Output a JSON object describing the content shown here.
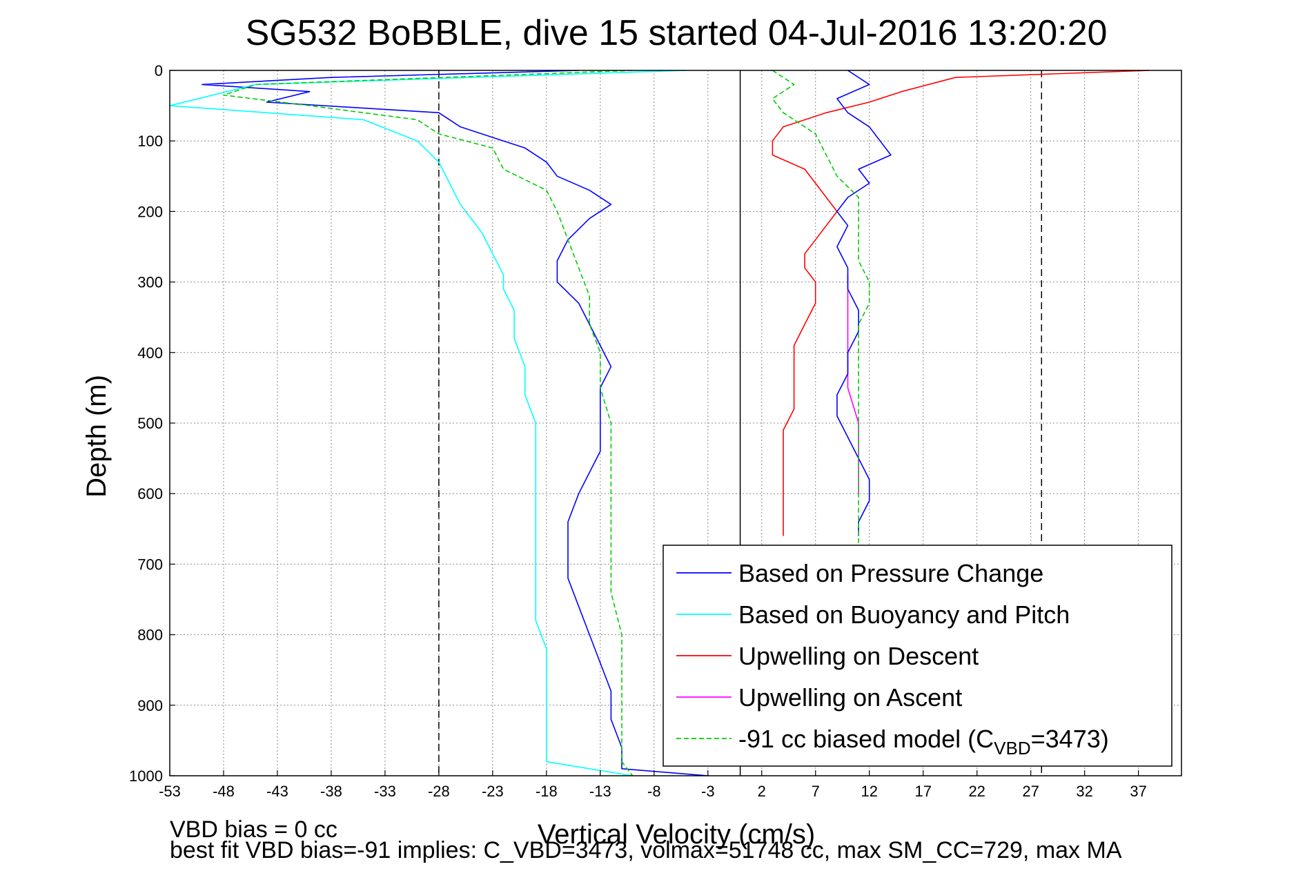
{
  "chart_data": {
    "type": "line",
    "title": "SG532 BoBBLE, dive 15 started 04-Jul-2016 13:20:20",
    "xlabel": "Vertical Velocity (cm/s)",
    "ylabel": "Depth (m)",
    "xlim": [
      -53,
      41
    ],
    "ylim": [
      0,
      1000
    ],
    "y_reversed": true,
    "grid": true,
    "x_ticks": [
      -53,
      -48,
      -43,
      -38,
      -33,
      -28,
      -23,
      -18,
      -13,
      -8,
      -3,
      2,
      7,
      12,
      17,
      22,
      27,
      32,
      37
    ],
    "y_ticks": [
      0,
      100,
      200,
      300,
      400,
      500,
      600,
      700,
      800,
      900,
      1000
    ],
    "vlines": [
      {
        "x": -28,
        "style": "dashed",
        "color": "#000000"
      },
      {
        "x": 0,
        "style": "solid",
        "color": "#000000"
      },
      {
        "x": 28,
        "style": "dashed",
        "color": "#000000"
      }
    ],
    "legend_position": "bottom-right",
    "series": [
      {
        "name": "Based on Pressure Change",
        "color": "#0000ff",
        "style": "solid",
        "points": [
          [
            -15,
            0
          ],
          [
            -38,
            10
          ],
          [
            -50,
            20
          ],
          [
            -40,
            30
          ],
          [
            -44,
            45
          ],
          [
            -28,
            60
          ],
          [
            -26,
            80
          ],
          [
            -23,
            95
          ],
          [
            -20,
            110
          ],
          [
            -18,
            130
          ],
          [
            -17,
            150
          ],
          [
            -14,
            170
          ],
          [
            -12,
            190
          ],
          [
            -14,
            210
          ],
          [
            -16,
            240
          ],
          [
            -17,
            270
          ],
          [
            -17,
            300
          ],
          [
            -15,
            330
          ],
          [
            -14,
            360
          ],
          [
            -13,
            390
          ],
          [
            -12,
            420
          ],
          [
            -13,
            450
          ],
          [
            -13,
            480
          ],
          [
            -13,
            510
          ],
          [
            -13,
            540
          ],
          [
            -14,
            570
          ],
          [
            -15,
            600
          ],
          [
            -16,
            640
          ],
          [
            -16,
            680
          ],
          [
            -16,
            720
          ],
          [
            -15,
            760
          ],
          [
            -14,
            800
          ],
          [
            -13,
            840
          ],
          [
            -12,
            880
          ],
          [
            -12,
            920
          ],
          [
            -11,
            960
          ],
          [
            -11,
            990
          ],
          [
            -3,
            1000
          ]
        ]
      },
      {
        "name": "Based on Buoyancy and Pitch",
        "color": "#00ffff",
        "style": "solid",
        "points": [
          [
            -5,
            0
          ],
          [
            -45,
            20
          ],
          [
            -53,
            50
          ],
          [
            -35,
            70
          ],
          [
            -30,
            100
          ],
          [
            -28,
            130
          ],
          [
            -27,
            160
          ],
          [
            -26,
            190
          ],
          [
            -25,
            210
          ],
          [
            -24,
            230
          ],
          [
            -23,
            260
          ],
          [
            -22,
            290
          ],
          [
            -22,
            310
          ],
          [
            -21,
            340
          ],
          [
            -21,
            380
          ],
          [
            -20,
            420
          ],
          [
            -20,
            460
          ],
          [
            -19,
            500
          ],
          [
            -19,
            540
          ],
          [
            -19,
            580
          ],
          [
            -19,
            620
          ],
          [
            -19,
            660
          ],
          [
            -19,
            700
          ],
          [
            -19,
            740
          ],
          [
            -19,
            780
          ],
          [
            -18,
            820
          ],
          [
            -18,
            860
          ],
          [
            -18,
            900
          ],
          [
            -18,
            940
          ],
          [
            -18,
            980
          ],
          [
            -10,
            1000
          ]
        ]
      },
      {
        "name": "Upwelling on Descent",
        "color": "#ff0000",
        "style": "solid",
        "points": [
          [
            38,
            0
          ],
          [
            20,
            10
          ],
          [
            15,
            30
          ],
          [
            12,
            45
          ],
          [
            8,
            60
          ],
          [
            4,
            80
          ],
          [
            3,
            100
          ],
          [
            3,
            120
          ],
          [
            6,
            140
          ],
          [
            7,
            160
          ],
          [
            8,
            180
          ],
          [
            9,
            200
          ],
          [
            8,
            220
          ],
          [
            7,
            240
          ],
          [
            6,
            260
          ],
          [
            6,
            280
          ],
          [
            7,
            300
          ],
          [
            7,
            330
          ],
          [
            6,
            360
          ],
          [
            5,
            390
          ],
          [
            5,
            420
          ],
          [
            5,
            450
          ],
          [
            5,
            480
          ],
          [
            4,
            510
          ],
          [
            4,
            540
          ],
          [
            4,
            570
          ],
          [
            4,
            600
          ],
          [
            4,
            630
          ],
          [
            4,
            660
          ]
        ]
      },
      {
        "name": "Upwelling on Ascent",
        "color": "#ff00ff",
        "style": "solid",
        "points": [
          [
            10,
            290
          ],
          [
            10,
            350
          ],
          [
            10,
            400
          ],
          [
            10,
            450
          ],
          [
            11,
            500
          ],
          [
            11,
            550
          ],
          [
            11,
            600
          ]
        ]
      },
      {
        "name": "-91 cc biased model (C",
        "name_subscript": "VBD",
        "name_suffix": "=3473)",
        "color": "#00cc00",
        "style": "dashed",
        "points": [
          [
            -10,
            0
          ],
          [
            -45,
            20
          ],
          [
            -48,
            35
          ],
          [
            -40,
            50
          ],
          [
            -30,
            70
          ],
          [
            -28,
            90
          ],
          [
            -23,
            110
          ],
          [
            -22,
            140
          ],
          [
            -18,
            170
          ],
          [
            -17,
            200
          ],
          [
            -16,
            240
          ],
          [
            -15,
            280
          ],
          [
            -14,
            320
          ],
          [
            -14,
            360
          ],
          [
            -13,
            400
          ],
          [
            -13,
            450
          ],
          [
            -12,
            500
          ],
          [
            -12,
            560
          ],
          [
            -12,
            620
          ],
          [
            -12,
            680
          ],
          [
            -12,
            740
          ],
          [
            -11,
            800
          ],
          [
            -11,
            860
          ],
          [
            -11,
            920
          ],
          [
            -11,
            980
          ],
          [
            -10,
            1000
          ]
        ]
      },
      {
        "color": "#0000ff",
        "style": "solid",
        "points": [
          [
            10,
            0
          ],
          [
            12,
            20
          ],
          [
            9,
            40
          ],
          [
            10,
            60
          ],
          [
            12,
            80
          ],
          [
            13,
            100
          ],
          [
            14,
            120
          ],
          [
            11,
            140
          ],
          [
            12,
            160
          ],
          [
            10,
            180
          ],
          [
            9,
            200
          ],
          [
            10,
            220
          ],
          [
            9,
            250
          ],
          [
            10,
            280
          ],
          [
            10,
            310
          ],
          [
            11,
            340
          ],
          [
            11,
            370
          ],
          [
            10,
            400
          ],
          [
            10,
            430
          ],
          [
            9,
            460
          ],
          [
            9,
            490
          ],
          [
            10,
            520
          ],
          [
            11,
            550
          ],
          [
            12,
            580
          ],
          [
            12,
            610
          ],
          [
            11,
            640
          ],
          [
            11,
            660
          ]
        ]
      },
      {
        "color": "#00cc00",
        "style": "dashed",
        "points": [
          [
            3,
            0
          ],
          [
            5,
            20
          ],
          [
            3,
            40
          ],
          [
            4,
            60
          ],
          [
            7,
            90
          ],
          [
            8,
            120
          ],
          [
            9,
            150
          ],
          [
            11,
            180
          ],
          [
            11,
            210
          ],
          [
            11,
            240
          ],
          [
            11,
            270
          ],
          [
            12,
            300
          ],
          [
            12,
            330
          ],
          [
            11,
            360
          ],
          [
            11,
            400
          ],
          [
            11,
            450
          ],
          [
            11,
            500
          ],
          [
            11,
            550
          ],
          [
            11,
            600
          ],
          [
            11,
            640
          ],
          [
            11,
            670
          ]
        ]
      }
    ],
    "footnotes": [
      "VBD bias = 0 cc",
      "best fit VBD bias=-91 implies: C_VBD=3473, volmax=51748 cc, max SM_CC=729, max MA"
    ]
  }
}
